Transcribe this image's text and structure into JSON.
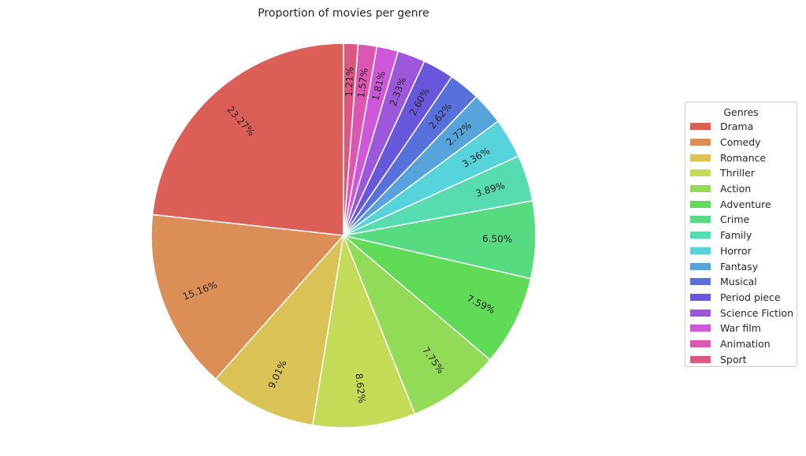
{
  "chart_data": {
    "type": "pie",
    "title": "Proportion of movies per genre",
    "legend_title": "Genres",
    "legend_position": "right",
    "start_angle_deg": 90,
    "direction": "counterclockwise",
    "categories": [
      "Drama",
      "Comedy",
      "Romance",
      "Thriller",
      "Action",
      "Adventure",
      "Crime",
      "Family",
      "Horror",
      "Fantasy",
      "Musical",
      "Period piece",
      "Science Fiction",
      "War film",
      "Animation",
      "Sport"
    ],
    "values": [
      23.27,
      15.16,
      9.01,
      8.62,
      7.75,
      7.59,
      6.5,
      3.89,
      3.36,
      2.72,
      2.62,
      2.6,
      2.33,
      1.81,
      1.57,
      1.21
    ],
    "labels": [
      "23.27%",
      "15.16%",
      "9.01%",
      "8.62%",
      "7.75%",
      "7.59%",
      "6.50%",
      "3.89%",
      "3.36%",
      "2.72%",
      "2.62%",
      "2.60%",
      "2.33%",
      "1.81%",
      "1.57%",
      "1.21%"
    ],
    "colors": [
      "#db5f57",
      "#db8f57",
      "#dbc257",
      "#c4db57",
      "#91db57",
      "#5fdb57",
      "#57db80",
      "#57dbb0",
      "#57d3db",
      "#57a3db",
      "#5770db",
      "#6957db",
      "#9c57db",
      "#cf57db",
      "#db57b2",
      "#db5780"
    ]
  }
}
